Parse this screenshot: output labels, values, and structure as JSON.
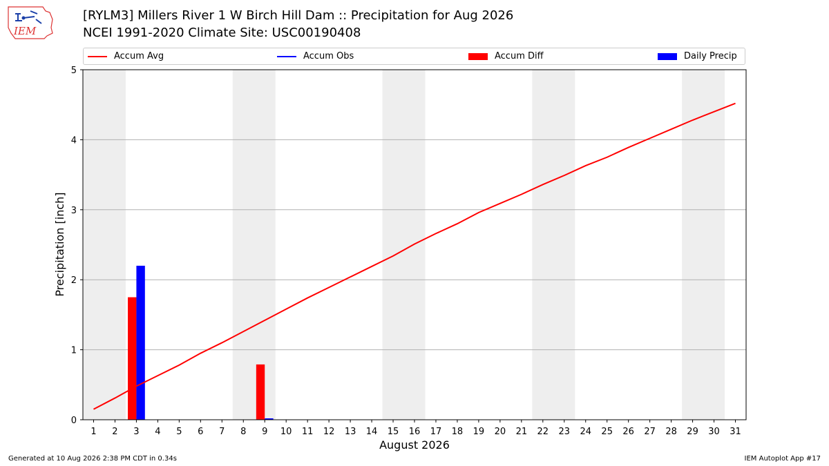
{
  "header": {
    "title": "[RYLM3] Millers River 1 W Birch Hill Dam :: Precipitation for Aug 2026",
    "subtitle": "NCEI 1991-2020 Climate Site: USC00190408"
  },
  "logo": {
    "text": "IEM"
  },
  "footer": {
    "generated": "Generated at 10 Aug 2026 2:38 PM CDT in 0.34s",
    "app": "IEM Autoplot App #17"
  },
  "colors": {
    "accum_avg": "#ff0000",
    "accum_obs": "#0000ff",
    "accum_diff": "#ff0000",
    "daily_precip": "#0000ff",
    "weekend_shade": "#eeeeee",
    "grid": "#b0b0b0"
  },
  "chart_data": {
    "type": "bar",
    "xlabel": "August 2026",
    "ylabel": "Precipitation [inch]",
    "ylim": [
      0,
      5
    ],
    "xlim": [
      0.5,
      31.5
    ],
    "yticks": [
      "0",
      "1",
      "2",
      "3",
      "4",
      "5"
    ],
    "categories": [
      "1",
      "2",
      "3",
      "4",
      "5",
      "6",
      "7",
      "8",
      "9",
      "10",
      "11",
      "12",
      "13",
      "14",
      "15",
      "16",
      "17",
      "18",
      "19",
      "20",
      "21",
      "22",
      "23",
      "24",
      "25",
      "26",
      "27",
      "28",
      "29",
      "30",
      "31"
    ],
    "grid": "horizontal",
    "legend_position": "top",
    "weekend_spans": [
      [
        0.5,
        2.5
      ],
      [
        7.5,
        9.5
      ],
      [
        14.5,
        16.5
      ],
      [
        21.5,
        23.5
      ],
      [
        28.5,
        30.5
      ]
    ],
    "legend": [
      {
        "label": "Accum Avg",
        "kind": "line",
        "color": "#ff0000"
      },
      {
        "label": "Accum Obs",
        "kind": "line",
        "color": "#0000ff"
      },
      {
        "label": "Accum Diff",
        "kind": "bar",
        "color": "#ff0000"
      },
      {
        "label": "Daily Precip",
        "kind": "bar",
        "color": "#0000ff"
      }
    ],
    "series": [
      {
        "name": "Accum Avg",
        "type": "line",
        "x": [
          1,
          2,
          3,
          4,
          5,
          6,
          7,
          8,
          9,
          10,
          11,
          12,
          13,
          14,
          15,
          16,
          17,
          18,
          19,
          20,
          21,
          22,
          23,
          24,
          25,
          26,
          27,
          28,
          29,
          30,
          31
        ],
        "values": [
          0.15,
          0.31,
          0.48,
          0.63,
          0.78,
          0.95,
          1.1,
          1.26,
          1.42,
          1.58,
          1.74,
          1.89,
          2.04,
          2.19,
          2.34,
          2.51,
          2.66,
          2.8,
          2.96,
          3.09,
          3.22,
          3.36,
          3.49,
          3.63,
          3.75,
          3.89,
          4.02,
          4.15,
          4.28,
          4.4,
          4.52
        ]
      },
      {
        "name": "Accum Diff",
        "type": "bar",
        "x": [
          3,
          9
        ],
        "values": [
          1.75,
          0.79
        ]
      },
      {
        "name": "Daily Precip",
        "type": "bar",
        "x": [
          3,
          9
        ],
        "values": [
          2.2,
          0.02
        ]
      }
    ]
  }
}
